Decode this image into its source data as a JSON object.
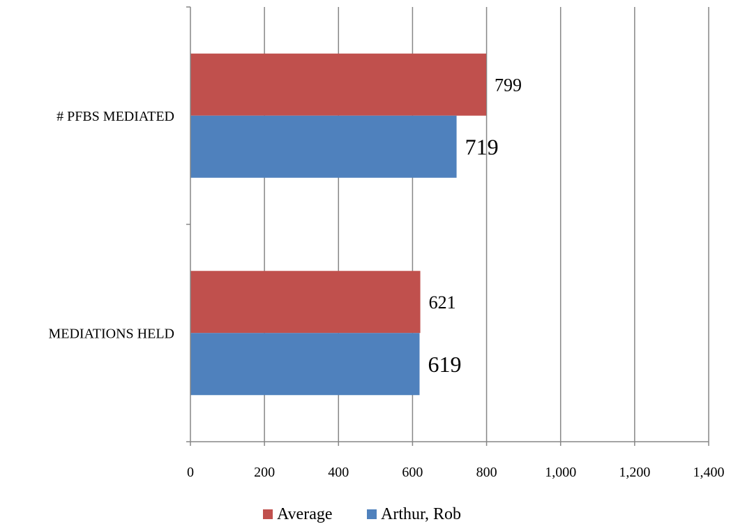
{
  "chart_data": {
    "type": "bar",
    "orientation": "horizontal",
    "categories": [
      "# PFBS MEDIATED",
      "MEDIATIONS HELD"
    ],
    "series": [
      {
        "name": "Average",
        "values": [
          799,
          621
        ],
        "color": "#C0504D"
      },
      {
        "name": "Arthur, Rob",
        "values": [
          719,
          619
        ],
        "color": "#4F81BD"
      }
    ],
    "xlim": [
      0,
      1400
    ],
    "x_ticks": [
      0,
      200,
      400,
      600,
      800,
      1000,
      1200,
      1400
    ],
    "x_tick_labels": [
      "0",
      "200",
      "400",
      "600",
      "800",
      "1,000",
      "1,200",
      "1,400"
    ],
    "data_labels": [
      {
        "series": "Average",
        "labels": [
          "799",
          "621"
        ]
      },
      {
        "series": "Arthur, Rob",
        "labels": [
          "719",
          "619"
        ]
      }
    ],
    "grid": "vertical",
    "legend": "bottom",
    "title": "",
    "xlabel": "",
    "ylabel": ""
  }
}
